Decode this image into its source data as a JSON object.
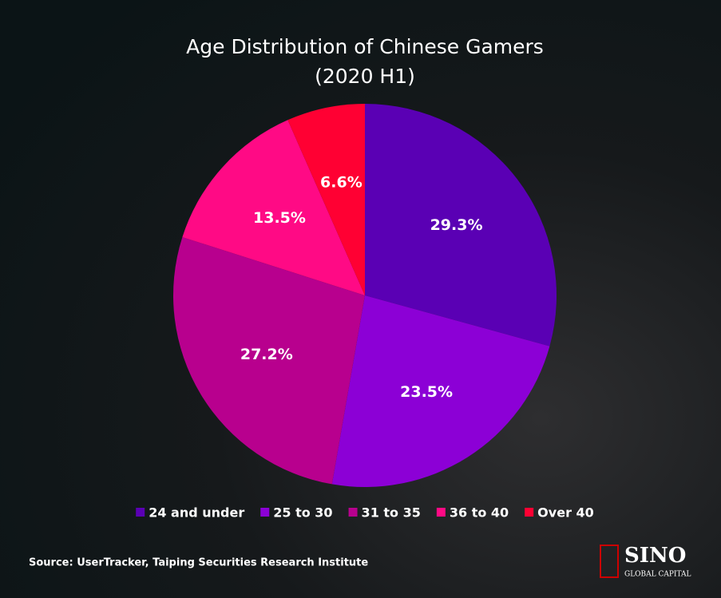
{
  "chart_data": {
    "type": "pie",
    "title": "Age Distribution of Chinese Gamers",
    "subtitle": "(2020 H1)",
    "categories": [
      "24 and under",
      "25 to 30",
      "31 to 35",
      "36 to 40",
      "Over 40"
    ],
    "values": [
      29.3,
      23.5,
      27.2,
      13.5,
      6.6
    ],
    "value_labels": [
      "29.3%",
      "23.5%",
      "27.2%",
      "13.5%",
      "6.6%"
    ],
    "colors": [
      "#5a00b4",
      "#8c00d6",
      "#b8008e",
      "#ff0a85",
      "#ff0033"
    ],
    "legend": "bottom",
    "source": "Source: UserTracker, Taiping Securities Research Institute"
  },
  "brand": {
    "name": "SINO",
    "tagline": "GLOBAL CAPITAL"
  }
}
